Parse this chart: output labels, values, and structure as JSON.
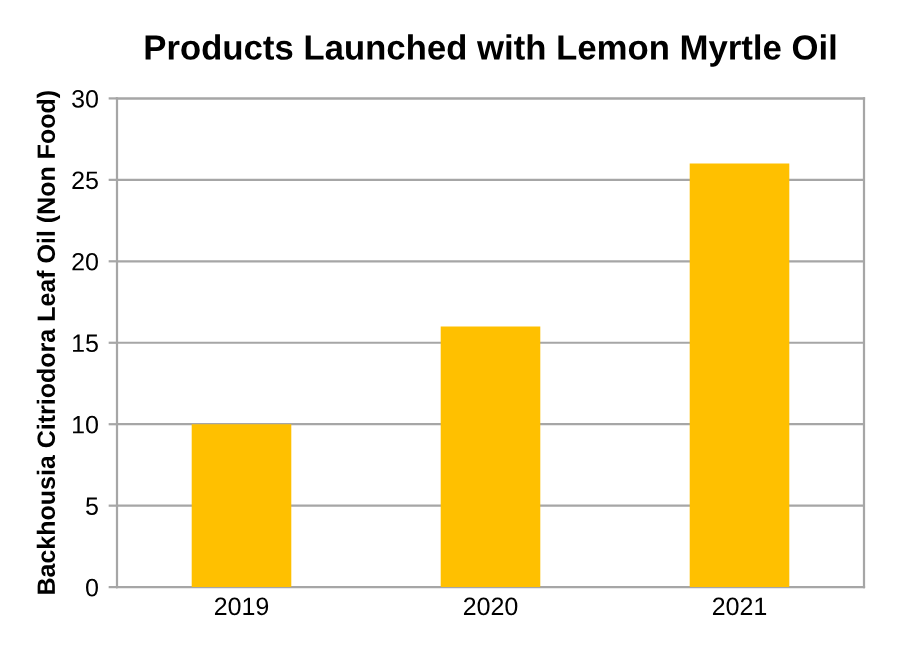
{
  "chart_data": {
    "type": "bar",
    "title": "Products Launched with Lemon Myrtle Oil",
    "ylabel": "Backhousia Citriodora Leaf Oil (Non Food)",
    "categories": [
      "2019",
      "2020",
      "2021"
    ],
    "values": [
      10,
      16,
      26
    ],
    "color": "#ffc000",
    "ylim": [
      0,
      30
    ],
    "yticks": [
      0,
      5,
      10,
      15,
      20,
      25,
      30
    ],
    "grid": "y"
  }
}
